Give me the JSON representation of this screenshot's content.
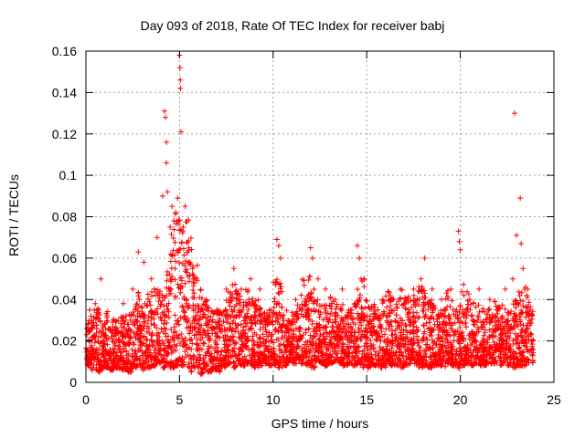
{
  "chart_data": {
    "type": "scatter",
    "title": "Day 093 of 2018, Rate Of TEC Index for receiver babj",
    "xlabel": "GPS time / hours",
    "ylabel": "ROTI / TECUs",
    "xlim": [
      0,
      25
    ],
    "ylim": [
      0,
      0.16
    ],
    "xticks": [
      0,
      5,
      10,
      15,
      20,
      25
    ],
    "xtick_labels": [
      "0",
      "5",
      "10",
      "15",
      "20",
      "25"
    ],
    "yticks": [
      0,
      0.02,
      0.04,
      0.06,
      0.08,
      0.1,
      0.12,
      0.14,
      0.16
    ],
    "ytick_labels": [
      "0",
      "0.02",
      "0.04",
      "0.06",
      "0.08",
      "0.1",
      "0.12",
      "0.14",
      "0.16"
    ],
    "grid": true,
    "marker": "+",
    "color": "#ff0000",
    "series": [
      {
        "name": "ROTI",
        "points": [
          [
            0.2,
            0.035
          ],
          [
            0.5,
            0.038
          ],
          [
            0.8,
            0.05
          ],
          [
            1.0,
            0.028
          ],
          [
            1.5,
            0.03
          ],
          [
            2.0,
            0.038
          ],
          [
            2.5,
            0.045
          ],
          [
            2.8,
            0.063
          ],
          [
            3.1,
            0.058
          ],
          [
            3.5,
            0.05
          ],
          [
            3.8,
            0.07
          ],
          [
            4.1,
            0.09
          ],
          [
            4.2,
            0.131
          ],
          [
            4.25,
            0.128
          ],
          [
            4.3,
            0.116
          ],
          [
            4.3,
            0.106
          ],
          [
            4.35,
            0.092
          ],
          [
            4.5,
            0.075
          ],
          [
            4.6,
            0.085
          ],
          [
            4.7,
            0.078
          ],
          [
            4.8,
            0.082
          ],
          [
            4.9,
            0.089
          ],
          [
            5.0,
            0.158
          ],
          [
            5.02,
            0.152
          ],
          [
            5.04,
            0.146
          ],
          [
            5.05,
            0.142
          ],
          [
            5.08,
            0.121
          ],
          [
            5.2,
            0.075
          ],
          [
            5.3,
            0.085
          ],
          [
            5.5,
            0.065
          ],
          [
            5.7,
            0.055
          ],
          [
            6.0,
            0.03
          ],
          [
            6.5,
            0.03
          ],
          [
            7.0,
            0.035
          ],
          [
            7.5,
            0.045
          ],
          [
            7.9,
            0.055
          ],
          [
            8.3,
            0.045
          ],
          [
            8.8,
            0.05
          ],
          [
            9.3,
            0.045
          ],
          [
            9.8,
            0.035
          ],
          [
            10.2,
            0.069
          ],
          [
            10.3,
            0.066
          ],
          [
            10.4,
            0.06
          ],
          [
            10.8,
            0.03
          ],
          [
            11.2,
            0.04
          ],
          [
            11.5,
            0.035
          ],
          [
            12.0,
            0.065
          ],
          [
            12.1,
            0.06
          ],
          [
            12.4,
            0.05
          ],
          [
            12.8,
            0.045
          ],
          [
            13.3,
            0.04
          ],
          [
            13.7,
            0.045
          ],
          [
            14.2,
            0.035
          ],
          [
            14.5,
            0.066
          ],
          [
            14.6,
            0.06
          ],
          [
            14.7,
            0.05
          ],
          [
            15.0,
            0.03
          ],
          [
            15.6,
            0.035
          ],
          [
            16.2,
            0.04
          ],
          [
            16.8,
            0.045
          ],
          [
            17.5,
            0.045
          ],
          [
            17.9,
            0.05
          ],
          [
            18.1,
            0.06
          ],
          [
            18.5,
            0.045
          ],
          [
            19.0,
            0.04
          ],
          [
            19.5,
            0.045
          ],
          [
            19.9,
            0.073
          ],
          [
            19.95,
            0.068
          ],
          [
            20.0,
            0.064
          ],
          [
            20.5,
            0.04
          ],
          [
            21.0,
            0.045
          ],
          [
            21.5,
            0.035
          ],
          [
            22.0,
            0.035
          ],
          [
            22.4,
            0.045
          ],
          [
            22.8,
            0.05
          ],
          [
            22.9,
            0.13
          ],
          [
            23.0,
            0.071
          ],
          [
            23.2,
            0.089
          ],
          [
            23.25,
            0.067
          ],
          [
            23.35,
            0.055
          ],
          [
            23.6,
            0.045
          ],
          [
            23.8,
            0.033
          ]
        ]
      }
    ],
    "envelope": {
      "description": "dense band of ROTI values; per 0.25 h bin the points span [low, high]",
      "start": 0,
      "step": 0.25,
      "low": [
        0.008,
        0.006,
        0.005,
        0.006,
        0.007,
        0.006,
        0.007,
        0.006,
        0.006,
        0.005,
        0.007,
        0.008,
        0.006,
        0.007,
        0.008,
        0.009,
        0.007,
        0.008,
        0.007,
        0.008,
        0.008,
        0.007,
        0.005,
        0.006,
        0.004,
        0.006,
        0.005,
        0.006,
        0.005,
        0.007,
        0.008,
        0.007,
        0.009,
        0.008,
        0.009,
        0.008,
        0.007,
        0.008,
        0.009,
        0.008,
        0.008,
        0.007,
        0.008,
        0.009,
        0.009,
        0.01,
        0.009,
        0.008,
        0.007,
        0.009,
        0.009,
        0.008,
        0.009,
        0.01,
        0.009,
        0.008,
        0.009,
        0.008,
        0.009,
        0.007,
        0.007,
        0.008,
        0.008,
        0.007,
        0.009,
        0.008,
        0.008,
        0.007,
        0.008,
        0.009,
        0.009,
        0.007,
        0.008,
        0.007,
        0.008,
        0.008,
        0.007,
        0.009,
        0.008,
        0.007,
        0.008,
        0.009,
        0.008,
        0.009,
        0.008,
        0.008,
        0.009,
        0.009,
        0.008,
        0.009,
        0.008,
        0.007,
        0.008,
        0.008,
        0.009,
        0.009
      ],
      "high": [
        0.03,
        0.035,
        0.036,
        0.03,
        0.035,
        0.032,
        0.03,
        0.033,
        0.035,
        0.038,
        0.04,
        0.045,
        0.04,
        0.045,
        0.047,
        0.045,
        0.048,
        0.06,
        0.075,
        0.082,
        0.08,
        0.085,
        0.07,
        0.06,
        0.045,
        0.04,
        0.038,
        0.035,
        0.035,
        0.04,
        0.045,
        0.05,
        0.045,
        0.04,
        0.045,
        0.042,
        0.04,
        0.038,
        0.035,
        0.035,
        0.05,
        0.048,
        0.035,
        0.03,
        0.035,
        0.04,
        0.05,
        0.055,
        0.045,
        0.04,
        0.038,
        0.04,
        0.042,
        0.04,
        0.038,
        0.035,
        0.035,
        0.04,
        0.045,
        0.05,
        0.04,
        0.038,
        0.035,
        0.04,
        0.045,
        0.042,
        0.04,
        0.045,
        0.042,
        0.04,
        0.045,
        0.048,
        0.045,
        0.04,
        0.038,
        0.035,
        0.042,
        0.045,
        0.04,
        0.038,
        0.048,
        0.045,
        0.04,
        0.038,
        0.036,
        0.035,
        0.04,
        0.042,
        0.038,
        0.036,
        0.035,
        0.04,
        0.045,
        0.048,
        0.042,
        0.035
      ]
    }
  }
}
